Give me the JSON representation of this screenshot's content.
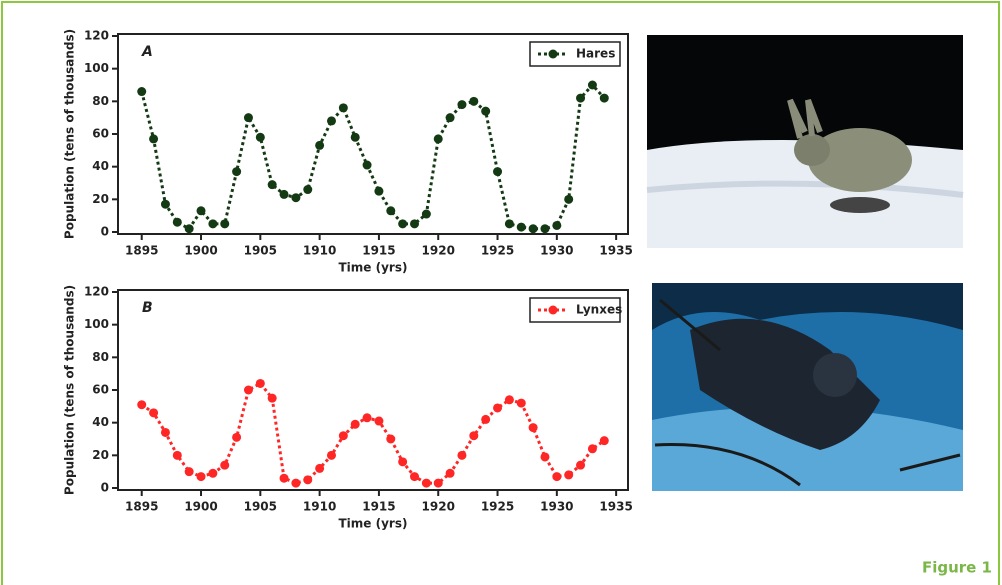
{
  "chart_data": [
    {
      "type": "line",
      "title": "A",
      "xlabel": "Time (yrs)",
      "ylabel": "Population (tens of thousands)",
      "x": [
        1895,
        1896,
        1897,
        1898,
        1899,
        1900,
        1901,
        1902,
        1903,
        1904,
        1905,
        1906,
        1907,
        1908,
        1909,
        1910,
        1911,
        1912,
        1913,
        1914,
        1915,
        1916,
        1917,
        1918,
        1919,
        1920,
        1921,
        1922,
        1923,
        1924,
        1925,
        1926,
        1927,
        1928,
        1929,
        1930,
        1931,
        1932,
        1933,
        1934
      ],
      "series": [
        {
          "name": "Hares",
          "color": "#143a14",
          "values": [
            86,
            57,
            17,
            6,
            2,
            13,
            5,
            5,
            37,
            70,
            58,
            29,
            23,
            21,
            26,
            53,
            68,
            76,
            58,
            41,
            25,
            13,
            5,
            5,
            11,
            57,
            70,
            78,
            80,
            74,
            37,
            5,
            3,
            2,
            2,
            4,
            20,
            82,
            90,
            82
          ]
        }
      ],
      "xlim": [
        1893,
        1936
      ],
      "xticks": [
        1895,
        1900,
        1905,
        1910,
        1915,
        1920,
        1925,
        1930,
        1935
      ],
      "ylim": [
        0,
        120
      ],
      "yticks": [
        0,
        20,
        40,
        60,
        80,
        100,
        120
      ],
      "legend": "upper right"
    },
    {
      "type": "line",
      "title": "B",
      "xlabel": "Time (yrs)",
      "ylabel": "Population (tens of thousands)",
      "x": [
        1895,
        1896,
        1897,
        1898,
        1899,
        1900,
        1901,
        1902,
        1903,
        1904,
        1905,
        1906,
        1907,
        1908,
        1909,
        1910,
        1911,
        1912,
        1913,
        1914,
        1915,
        1916,
        1917,
        1918,
        1919,
        1920,
        1921,
        1922,
        1923,
        1924,
        1925,
        1926,
        1927,
        1928,
        1929,
        1930,
        1931,
        1932,
        1933,
        1934
      ],
      "series": [
        {
          "name": "Lynxes",
          "color": "#ff2626",
          "values": [
            51,
            46,
            34,
            20,
            10,
            7,
            9,
            14,
            31,
            60,
            64,
            55,
            6,
            3,
            5,
            12,
            20,
            32,
            39,
            43,
            41,
            30,
            16,
            7,
            3,
            3,
            9,
            20,
            32,
            42,
            49,
            54,
            52,
            37,
            19,
            7,
            8,
            14,
            24,
            29
          ]
        }
      ],
      "xlim": [
        1893,
        1936
      ],
      "xticks": [
        1895,
        1900,
        1905,
        1910,
        1915,
        1920,
        1925,
        1930,
        1935
      ],
      "ylim": [
        0,
        120
      ],
      "yticks": [
        0,
        20,
        40,
        60,
        80,
        100,
        120
      ],
      "legend": "upper right"
    }
  ],
  "figure_label": "Figure 1"
}
